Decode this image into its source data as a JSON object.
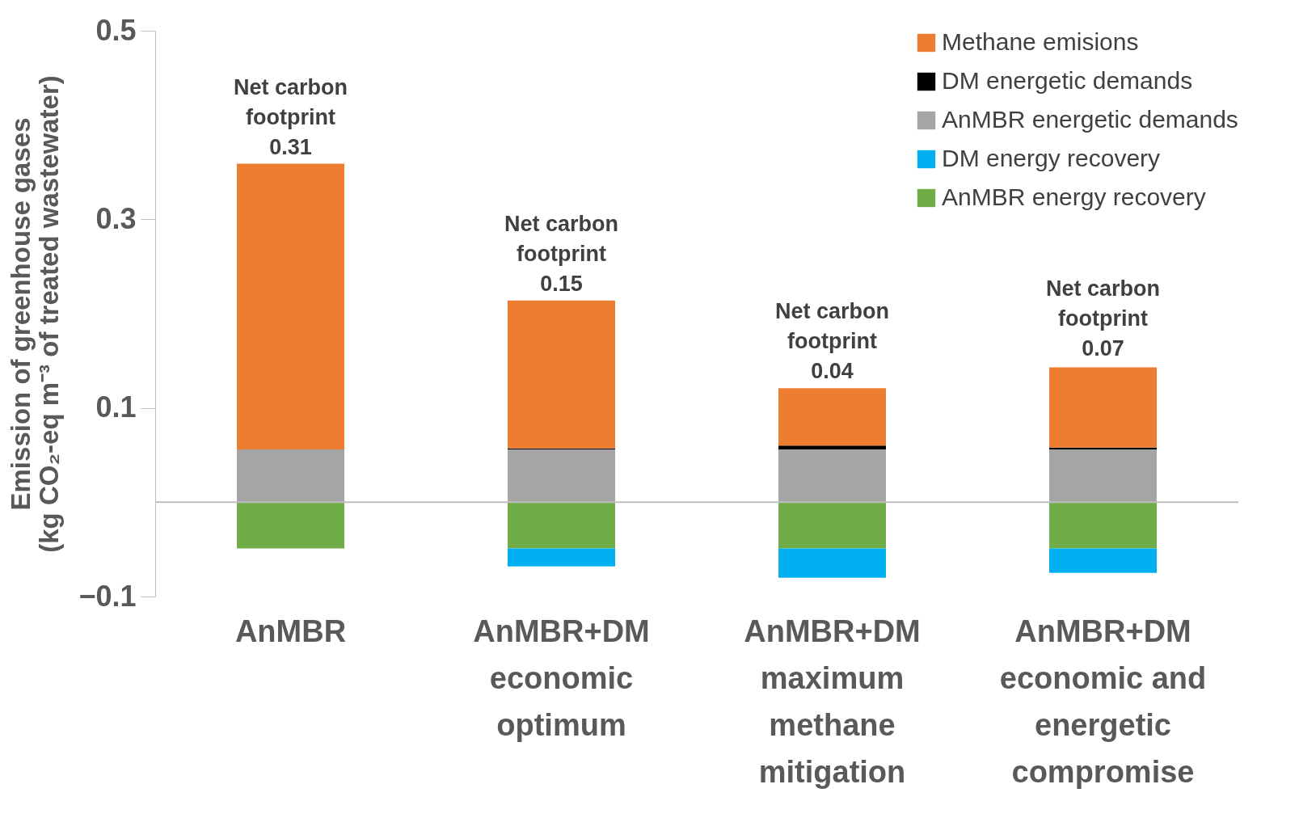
{
  "chart_data": {
    "type": "bar",
    "stacked": true,
    "ylabel": "Emission of greenhouse gases\n(kg CO₂-eq m⁻³ of treated wastewater)",
    "categories": [
      "AnMBR",
      "AnMBR+DM\neconomic\noptimum",
      "AnMBR+DM\nmaximum\nmethane\nmitigation",
      "AnMBR+DM\neconomic and\nenergetic\ncompromise"
    ],
    "series": [
      {
        "name": "AnMBR energy recovery",
        "color": "#70ad47",
        "values": [
          -0.049,
          -0.049,
          -0.049,
          -0.049
        ]
      },
      {
        "name": "DM energy recovery",
        "color": "#00b0f0",
        "values": [
          null,
          -0.019,
          -0.031,
          -0.026
        ]
      },
      {
        "name": "AnMBR energetic demands",
        "color": "#a5a5a5",
        "values": [
          0.056,
          0.056,
          0.056,
          0.056
        ]
      },
      {
        "name": "DM energetic demands",
        "color": "#000000",
        "values": [
          null,
          0.001,
          0.004,
          0.002
        ]
      },
      {
        "name": "Methane emisions",
        "color": "#ed7d31",
        "values": [
          0.303,
          0.157,
          0.061,
          0.085
        ]
      }
    ],
    "ylim": [
      -0.1,
      0.5
    ],
    "yticks": [
      -0.1,
      0.1,
      0.3,
      0.5
    ],
    "ref_lines": [
      {
        "axis": "y",
        "value": 0,
        "color": "#bfbfbf"
      }
    ],
    "annotations": [
      {
        "text": "Net carbon\nfootprint\n0.31",
        "x": "AnMBR",
        "y": 0.359
      },
      {
        "text": "Net carbon\nfootprint\n0.15",
        "x": "AnMBR+DM\neconomic\noptimum",
        "y": 0.214
      },
      {
        "text": "Net carbon\nfootprint\n0.04",
        "x": "AnMBR+DM\nmaximum\nmethane\nmitigation",
        "y": 0.121
      },
      {
        "text": "Net carbon\nfootprint\n0.07",
        "x": "AnMBR+DM\neconomic and\nenergetic\ncompromise",
        "y": 0.145
      }
    ],
    "legend": "top right",
    "grid": false
  }
}
